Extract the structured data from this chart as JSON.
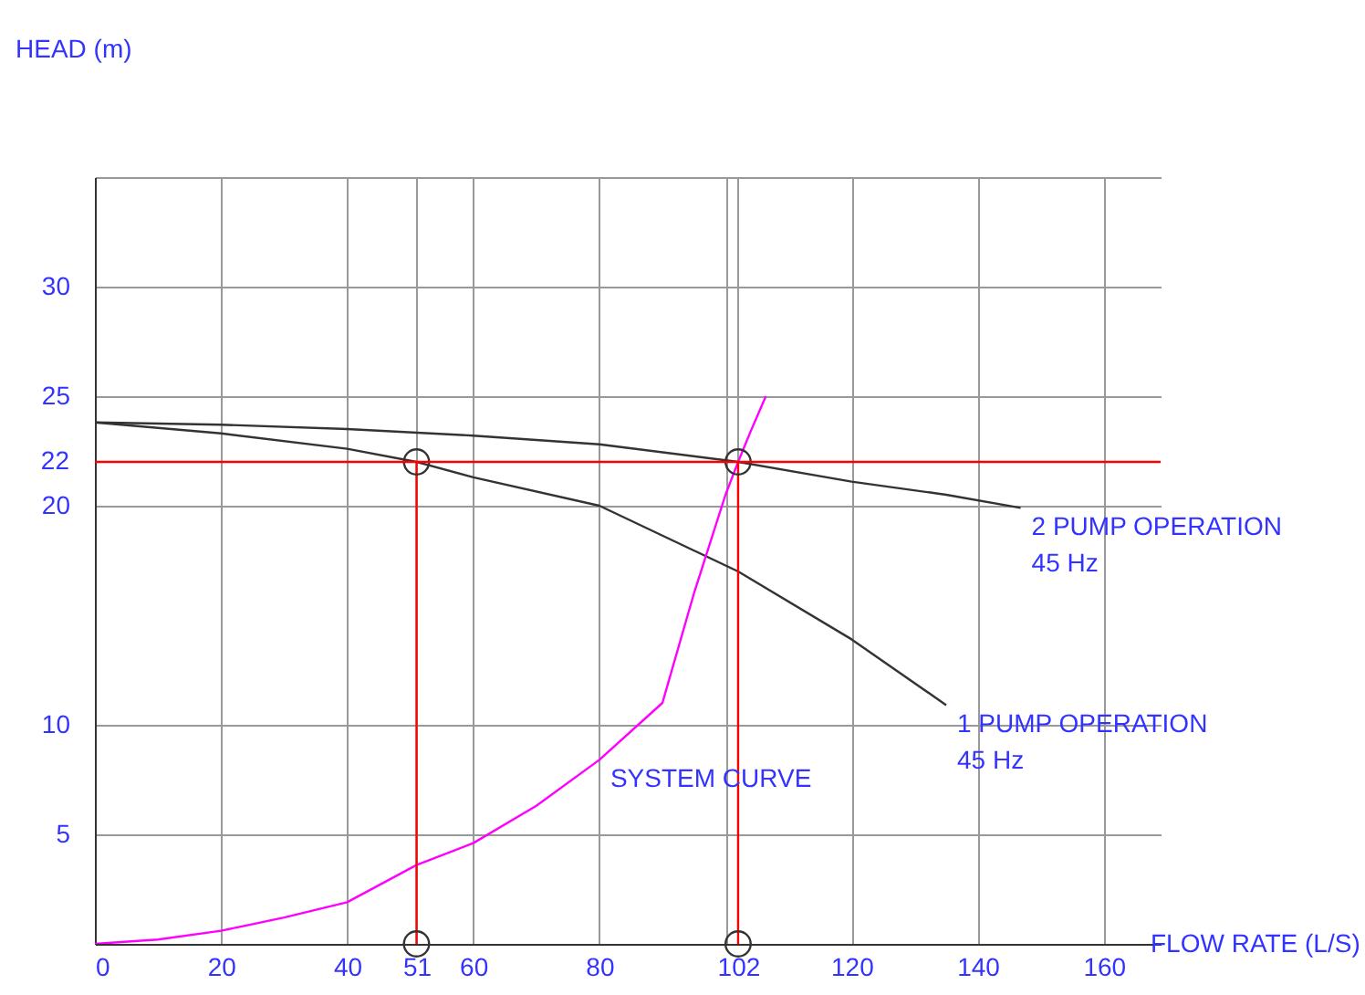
{
  "chart_data": {
    "type": "line",
    "xlabel": "FLOW RATE (L/S)",
    "ylabel": "HEAD (m)",
    "xlim": [
      0,
      169
    ],
    "ylim": [
      0,
      35
    ],
    "xticks": [
      0,
      20,
      40,
      51,
      60,
      80,
      {
        "value": 100,
        "label": null
      },
      102,
      120,
      140,
      160
    ],
    "yticks": [
      5,
      10,
      20,
      25,
      30,
      {
        "value": 35,
        "label": null
      }
    ],
    "grid": true,
    "series": [
      {
        "color": "#333333",
        "x": [
          0,
          20,
          40,
          60,
          80,
          102,
          120,
          135,
          146.8
        ],
        "values": [
          23.8,
          23.7,
          23.5,
          23.2,
          22.8,
          22,
          21.1,
          20.5,
          19.9
        ]
      },
      {
        "color": "#333333",
        "x": [
          0,
          20,
          40,
          51,
          60,
          80,
          102,
          120,
          135
        ],
        "values": [
          23.8,
          23.3,
          22.6,
          22,
          21.3,
          20,
          17,
          13.9,
          10.9
        ]
      },
      {
        "color": "#ff00ff",
        "x": [
          0,
          10,
          20,
          30,
          40,
          51,
          60,
          70,
          80,
          90,
          95,
          100,
          102,
          104,
          106.4
        ],
        "values": [
          0,
          0.2,
          0.6,
          1.2,
          1.9,
          3.6,
          4.6,
          6.3,
          8.4,
          11,
          16,
          20.5,
          22,
          23.4,
          25
        ]
      },
      {
        "color": "#ff0000",
        "x": [
          51,
          51
        ],
        "values": [
          0,
          22
        ]
      },
      {
        "color": "#ff0000",
        "x": [
          102,
          102
        ],
        "values": [
          0,
          22
        ]
      },
      {
        "type": "scatter",
        "marker": "circle",
        "color": "#333333",
        "x": [
          51,
          102,
          51,
          102
        ],
        "values": [
          22,
          22,
          0,
          0
        ]
      }
    ],
    "ref_lines": [
      {
        "axis": "y",
        "value": 22,
        "label": "22",
        "color": "#ff0000"
      }
    ],
    "annotations": [
      {
        "text": "2 PUMP OPERATION",
        "x": 146.8,
        "y": 19.9
      },
      {
        "text": "45 Hz",
        "x": 146.8,
        "y": 19.9
      },
      {
        "text": "1 PUMP OPERATION",
        "x": 135,
        "y": 10.9
      },
      {
        "text": "45 Hz",
        "x": 135,
        "y": 10.9
      },
      {
        "text": "SYSTEM CURVE",
        "x": 80,
        "y": 8.4
      }
    ]
  }
}
